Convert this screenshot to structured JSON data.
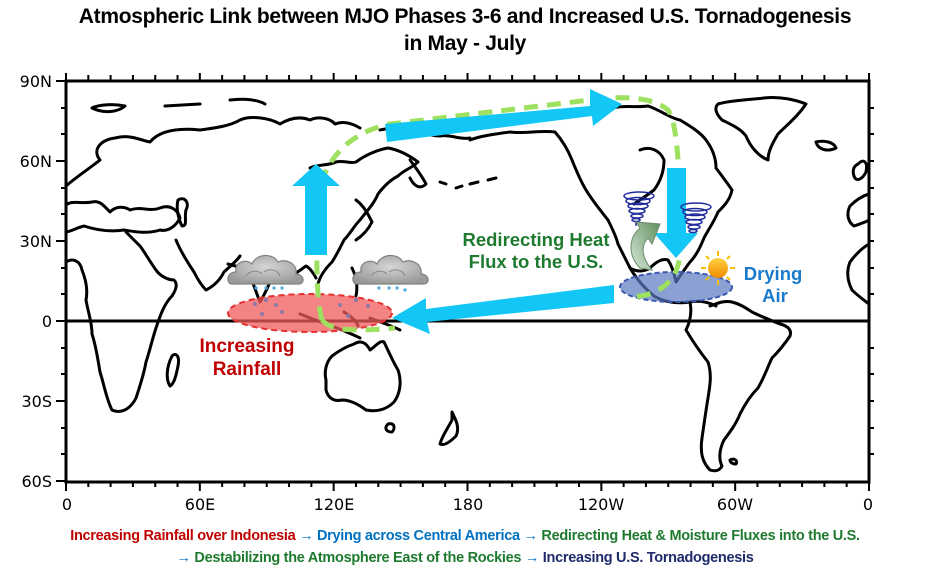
{
  "title": {
    "line1": "Atmospheric Link between MJO Phases 3-6 and Increased U.S. Tornadogenesis",
    "line2": "in May - July"
  },
  "map": {
    "y_ticks": [
      "90N",
      "60N",
      "30N",
      "0",
      "30S",
      "60S"
    ],
    "x_ticks": [
      "0",
      "60E",
      "120E",
      "180",
      "120W",
      "60W",
      "0"
    ],
    "annotations": {
      "rainfall_line1": "Increasing",
      "rainfall_line2": "Rainfall",
      "heat_line1": "Redirecting Heat",
      "heat_line2": "Flux to the U.S.",
      "drying_line1": "Drying",
      "drying_line2": "Air"
    },
    "colors": {
      "arrow": "#12c6f5",
      "dashed_path": "#9ee060",
      "rain_ellipse": "#f05a5a",
      "dry_ellipse": "#5a78c0",
      "rainfall_text": "#c00000",
      "heat_text": "#1e7a2e",
      "drying_text": "#1a7acc",
      "tornado": "#1f2a9b",
      "sun": "#f5a800"
    },
    "icons": [
      "rain-cloud-icon",
      "rain-cloud-icon",
      "tornado-icon",
      "tornado-icon",
      "sun-icon",
      "curved-arrow-icon"
    ]
  },
  "caption": {
    "step1": "Increasing Rainfall over Indonesia",
    "step2": "Drying across Central America",
    "step3": "Redirecting Heat & Moisture Fluxes into the U.S.",
    "step4": "Destabilizing the Atmosphere East of the Rockies",
    "step5": "Increasing U.S. Tornadogenesis",
    "arrow": "→"
  }
}
